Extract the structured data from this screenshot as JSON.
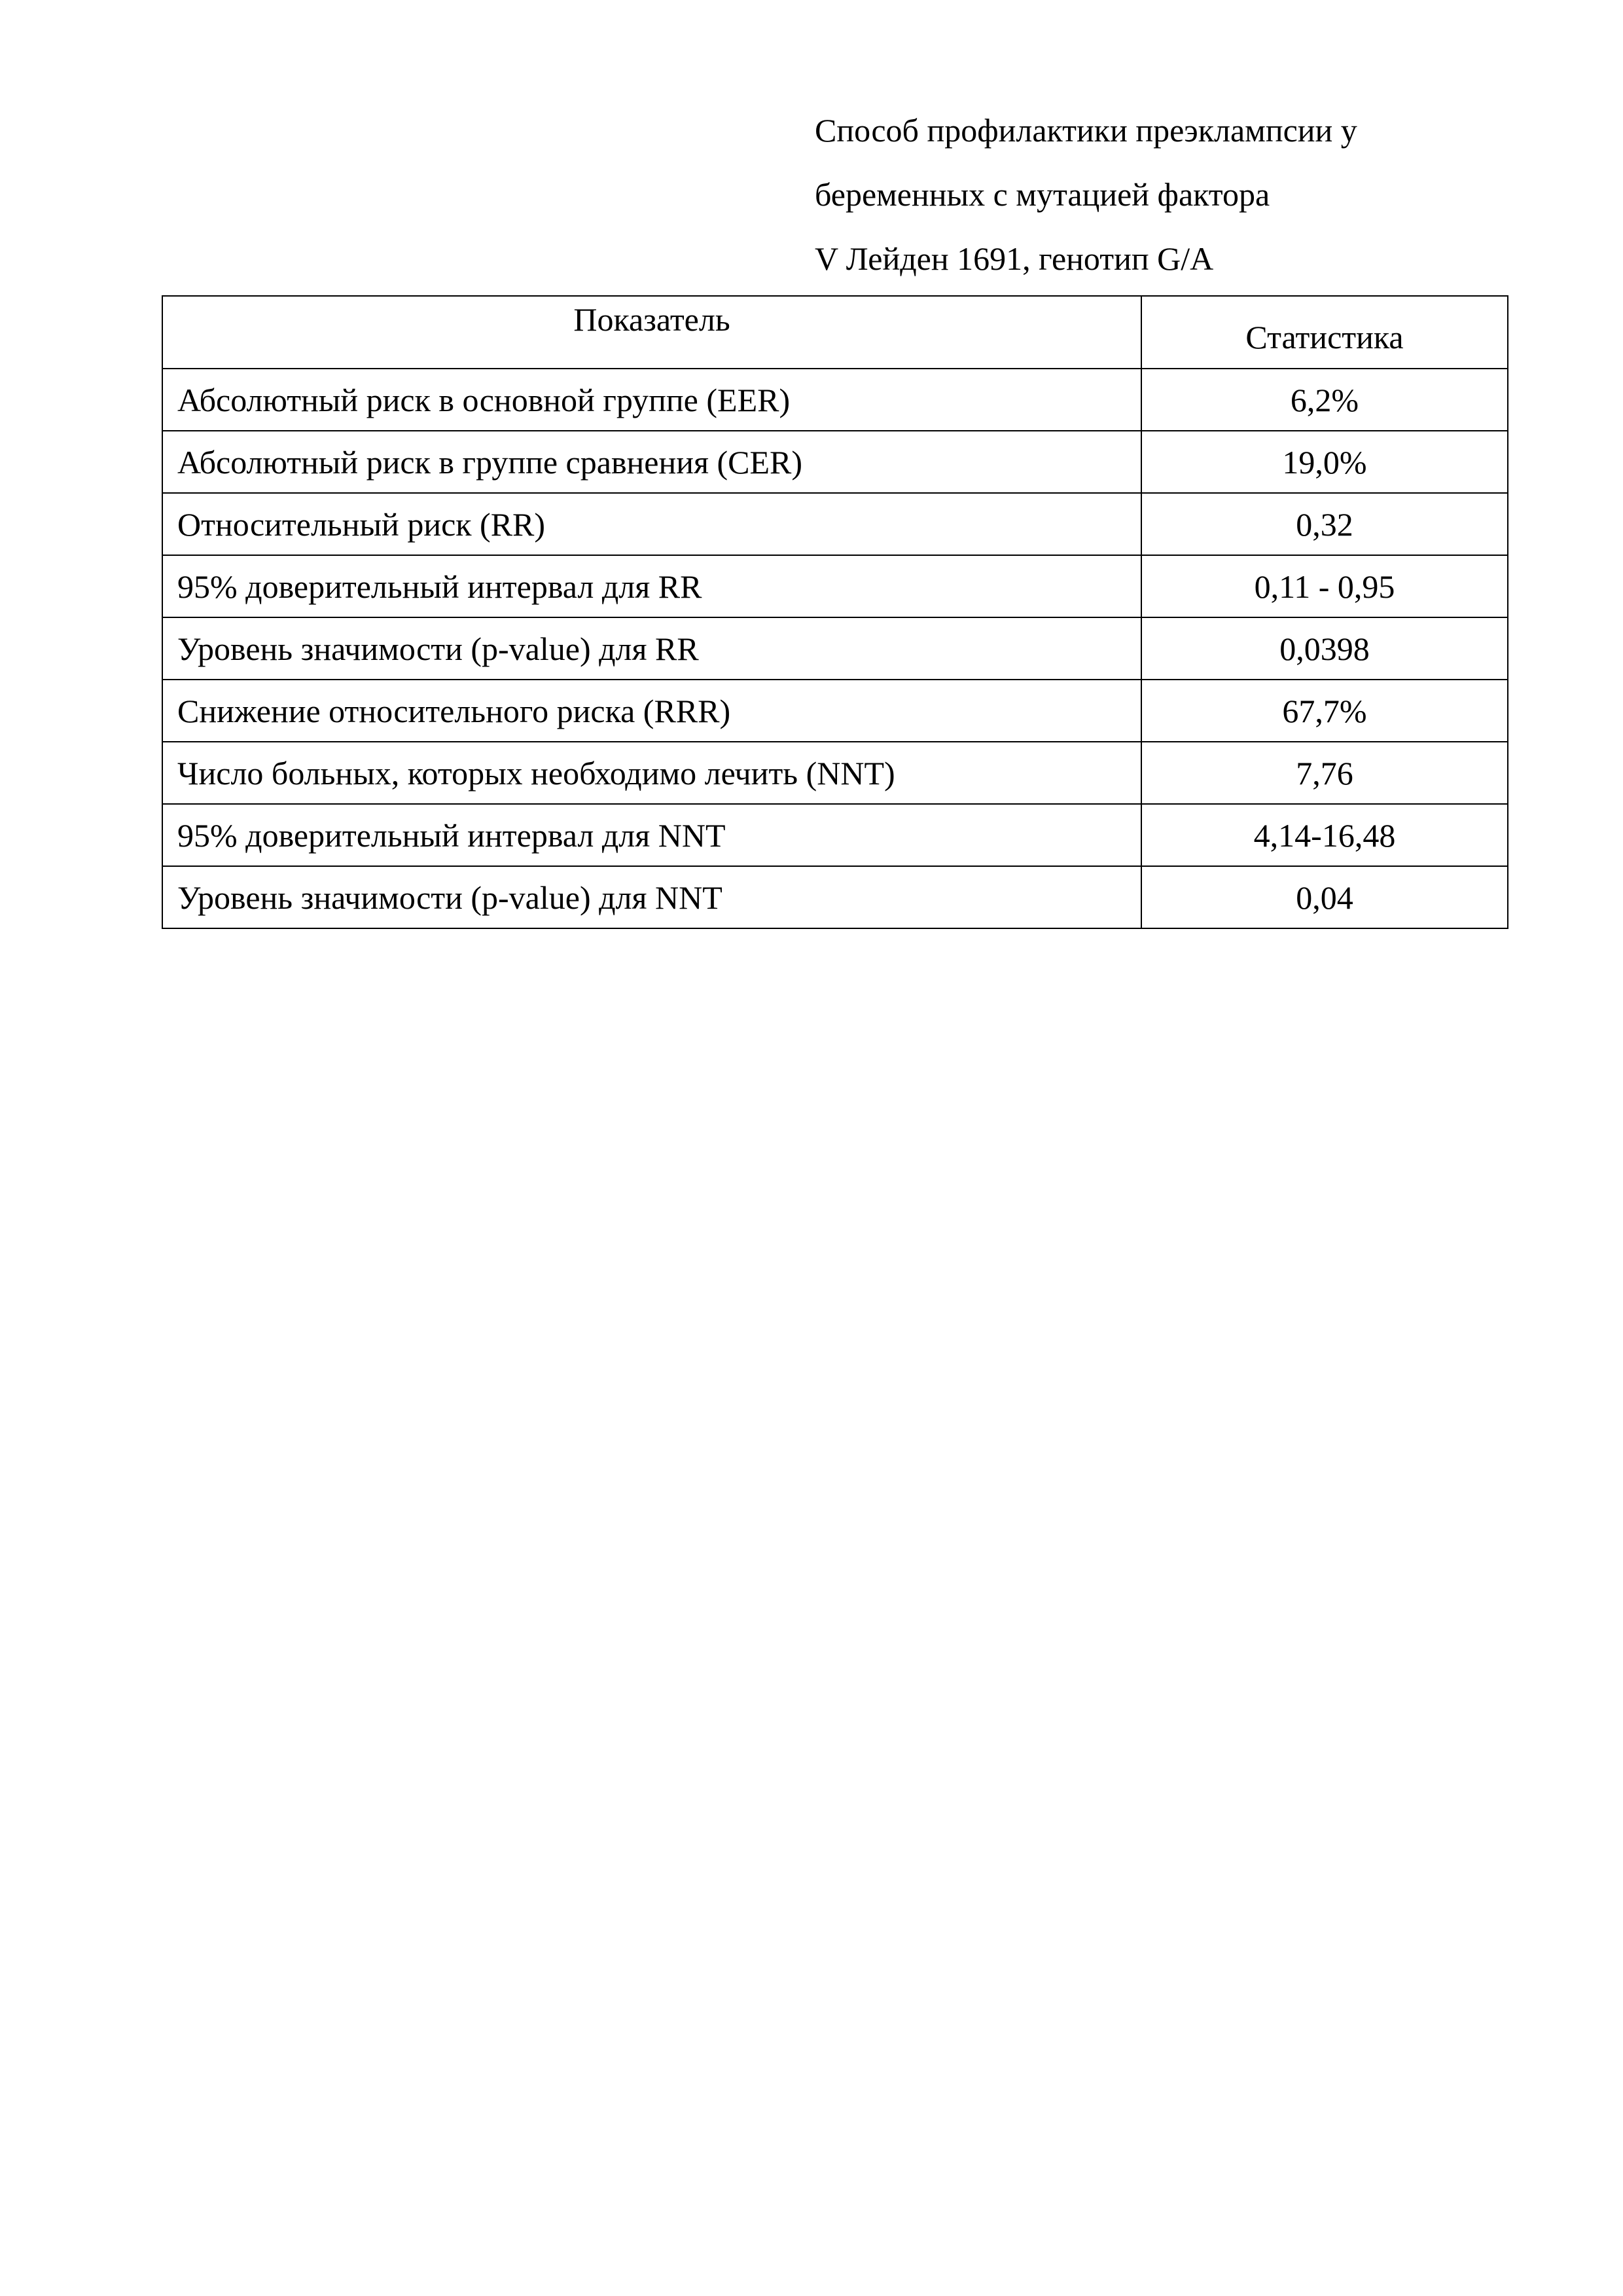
{
  "title_lines": [
    "Способ профилактики преэклампсии у",
    "беременных с мутацией фактора",
    "V Лейден 1691, генотип  G/A"
  ],
  "table": {
    "headers": [
      "Показатель",
      "Статистика"
    ],
    "rows": [
      [
        "Абсолютный риск в основной  группе (EER)",
        "6,2%"
      ],
      [
        "Абсолютный риск в группе сравнения (CER)",
        "19,0%"
      ],
      [
        "Относительный риск (RR)",
        "0,32"
      ],
      [
        "95% доверительный интервал для RR",
        "0,11 - 0,95"
      ],
      [
        "Уровень значимости (p-value) для RR",
        "0,0398"
      ],
      [
        "Снижение относительного риска (RRR)",
        "67,7%"
      ],
      [
        "Число больных, которых необходимо лечить (NNT)",
        "7,76"
      ],
      [
        "95% доверительный интервал для NNT",
        "4,14-16,48"
      ],
      [
        "Уровень значимости (p-value) для NNT",
        "0,04"
      ]
    ]
  }
}
